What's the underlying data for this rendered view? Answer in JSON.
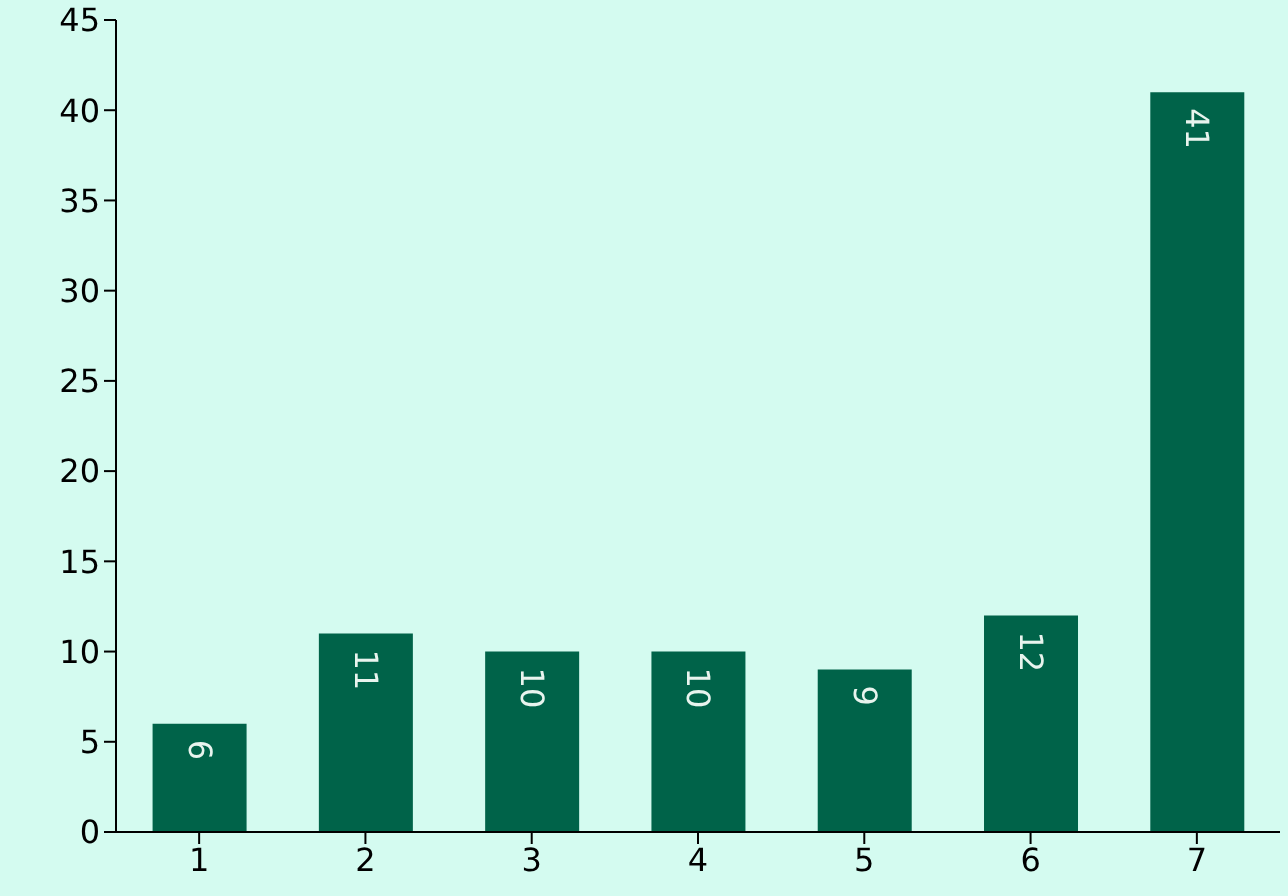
{
  "chart_data": {
    "type": "bar",
    "categories": [
      "1",
      "2",
      "3",
      "4",
      "5",
      "6",
      "7"
    ],
    "values": [
      6,
      11,
      10,
      10,
      9,
      12,
      41
    ],
    "color": "#006349",
    "ylim": [
      0,
      45
    ],
    "yticks": [
      0,
      5,
      10,
      15,
      20,
      25,
      30,
      35,
      40,
      45
    ],
    "grid": false,
    "data_labels": true
  }
}
